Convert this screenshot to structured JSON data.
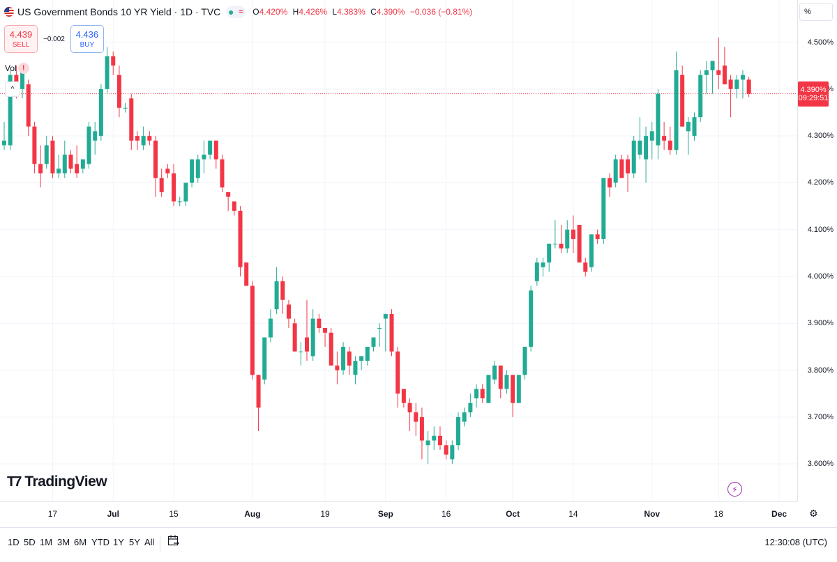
{
  "header": {
    "title": "US Government Bonds 10 YR Yield · 1D · TVC",
    "ohlc": {
      "open_label": "O",
      "open": "4.420%",
      "high_label": "H",
      "high": "4.426%",
      "low_label": "L",
      "low": "4.383%",
      "close_label": "C",
      "close": "4.390%",
      "change": "−0.036 (−0.81%)"
    },
    "status_icons": [
      "dot-icon",
      "wave-icon"
    ]
  },
  "trade": {
    "sell_price": "4.439",
    "sell_label": "SELL",
    "spread": "−0.002",
    "buy_price": "4.436",
    "buy_label": "BUY"
  },
  "volume_label": "Vol",
  "volume_warn": "!",
  "collapse_glyph": "^",
  "scale_mode": "%",
  "last_price": {
    "value": "4.390%",
    "countdown": "09:29:51"
  },
  "logo_text": "TradingView",
  "colors": {
    "up": "#22ab94",
    "down": "#f23645",
    "last": "#f23645",
    "grid": "#f0f3fa"
  },
  "ranges": [
    "1D",
    "5D",
    "1M",
    "3M",
    "6M",
    "YTD",
    "1Y",
    "5Y",
    "All"
  ],
  "clock": "12:30:08 (UTC)",
  "chart_data": {
    "type": "candlestick",
    "title": "US Government Bonds 10 YR Yield · 1D · TVC",
    "ylim": [
      3.52,
      4.59
    ],
    "y_ticks": [
      {
        "v": 3.6,
        "label": "3.600%"
      },
      {
        "v": 3.7,
        "label": "3.700%"
      },
      {
        "v": 3.8,
        "label": "3.800%"
      },
      {
        "v": 3.9,
        "label": "3.900%"
      },
      {
        "v": 4.0,
        "label": "4.000%"
      },
      {
        "v": 4.1,
        "label": "4.100%"
      },
      {
        "v": 4.2,
        "label": "4.200%"
      },
      {
        "v": 4.3,
        "label": "4.300%"
      },
      {
        "v": 4.4,
        "label": "4.400%"
      },
      {
        "v": 4.5,
        "label": "4.500%"
      }
    ],
    "x_ticks": [
      {
        "i": 8,
        "label": "17",
        "major": false
      },
      {
        "i": 18,
        "label": "Jul",
        "major": true
      },
      {
        "i": 28,
        "label": "15",
        "major": false
      },
      {
        "i": 41,
        "label": "Aug",
        "major": true
      },
      {
        "i": 53,
        "label": "19",
        "major": false
      },
      {
        "i": 63,
        "label": "Sep",
        "major": true
      },
      {
        "i": 73,
        "label": "16",
        "major": false
      },
      {
        "i": 84,
        "label": "Oct",
        "major": true
      },
      {
        "i": 94,
        "label": "14",
        "major": false
      },
      {
        "i": 107,
        "label": "Nov",
        "major": true
      },
      {
        "i": 118,
        "label": "18",
        "major": false
      },
      {
        "i": 128,
        "label": "Dec",
        "major": true
      }
    ],
    "candles": [
      {
        "o": 4.28,
        "h": 4.33,
        "l": 4.27,
        "c": 4.29
      },
      {
        "o": 4.28,
        "h": 4.44,
        "l": 4.27,
        "c": 4.43
      },
      {
        "o": 4.43,
        "h": 4.45,
        "l": 4.38,
        "c": 4.4
      },
      {
        "o": 4.4,
        "h": 4.45,
        "l": 4.38,
        "c": 4.44
      },
      {
        "o": 4.41,
        "h": 4.42,
        "l": 4.3,
        "c": 4.32
      },
      {
        "o": 4.32,
        "h": 4.33,
        "l": 4.22,
        "c": 4.24
      },
      {
        "o": 4.24,
        "h": 4.28,
        "l": 4.19,
        "c": 4.22
      },
      {
        "o": 4.24,
        "h": 4.3,
        "l": 4.23,
        "c": 4.28
      },
      {
        "o": 4.29,
        "h": 4.3,
        "l": 4.21,
        "c": 4.22
      },
      {
        "o": 4.22,
        "h": 4.26,
        "l": 4.21,
        "c": 4.23
      },
      {
        "o": 4.22,
        "h": 4.29,
        "l": 4.21,
        "c": 4.26
      },
      {
        "o": 4.26,
        "h": 4.27,
        "l": 4.22,
        "c": 4.23
      },
      {
        "o": 4.24,
        "h": 4.28,
        "l": 4.21,
        "c": 4.22
      },
      {
        "o": 4.23,
        "h": 4.25,
        "l": 4.22,
        "c": 4.25
      },
      {
        "o": 4.24,
        "h": 4.33,
        "l": 4.23,
        "c": 4.32
      },
      {
        "o": 4.29,
        "h": 4.33,
        "l": 4.26,
        "c": 4.31
      },
      {
        "o": 4.3,
        "h": 4.41,
        "l": 4.29,
        "c": 4.4
      },
      {
        "o": 4.4,
        "h": 4.49,
        "l": 4.39,
        "c": 4.47
      },
      {
        "o": 4.47,
        "h": 4.48,
        "l": 4.43,
        "c": 4.45
      },
      {
        "o": 4.43,
        "h": 4.45,
        "l": 4.34,
        "c": 4.36
      },
      {
        "o": 4.36,
        "h": 4.37,
        "l": 4.35,
        "c": 4.36
      },
      {
        "o": 4.38,
        "h": 4.39,
        "l": 4.27,
        "c": 4.29
      },
      {
        "o": 4.3,
        "h": 4.31,
        "l": 4.27,
        "c": 4.29
      },
      {
        "o": 4.28,
        "h": 4.32,
        "l": 4.27,
        "c": 4.3
      },
      {
        "o": 4.3,
        "h": 4.31,
        "l": 4.28,
        "c": 4.29
      },
      {
        "o": 4.29,
        "h": 4.3,
        "l": 4.17,
        "c": 4.21
      },
      {
        "o": 4.21,
        "h": 4.23,
        "l": 4.17,
        "c": 4.18
      },
      {
        "o": 4.23,
        "h": 4.24,
        "l": 4.21,
        "c": 4.22
      },
      {
        "o": 4.22,
        "h": 4.24,
        "l": 4.15,
        "c": 4.16
      },
      {
        "o": 4.16,
        "h": 4.17,
        "l": 4.15,
        "c": 4.16
      },
      {
        "o": 4.16,
        "h": 4.2,
        "l": 4.15,
        "c": 4.2
      },
      {
        "o": 4.2,
        "h": 4.25,
        "l": 4.19,
        "c": 4.25
      },
      {
        "o": 4.21,
        "h": 4.26,
        "l": 4.2,
        "c": 4.25
      },
      {
        "o": 4.25,
        "h": 4.29,
        "l": 4.22,
        "c": 4.26
      },
      {
        "o": 4.26,
        "h": 4.29,
        "l": 4.25,
        "c": 4.29
      },
      {
        "o": 4.29,
        "h": 4.29,
        "l": 4.23,
        "c": 4.25
      },
      {
        "o": 4.25,
        "h": 4.26,
        "l": 4.18,
        "c": 4.19
      },
      {
        "o": 4.18,
        "h": 4.18,
        "l": 4.14,
        "c": 4.17
      },
      {
        "o": 4.16,
        "h": 4.16,
        "l": 4.13,
        "c": 4.14
      },
      {
        "o": 4.14,
        "h": 4.15,
        "l": 4.0,
        "c": 4.02
      },
      {
        "o": 4.03,
        "h": 4.03,
        "l": 3.98,
        "c": 3.98
      },
      {
        "o": 3.98,
        "h": 3.99,
        "l": 3.78,
        "c": 3.79
      },
      {
        "o": 3.79,
        "h": 3.79,
        "l": 3.67,
        "c": 3.72
      },
      {
        "o": 3.78,
        "h": 3.87,
        "l": 3.77,
        "c": 3.87
      },
      {
        "o": 3.87,
        "h": 3.93,
        "l": 3.86,
        "c": 3.91
      },
      {
        "o": 3.93,
        "h": 4.02,
        "l": 3.92,
        "c": 3.99
      },
      {
        "o": 3.99,
        "h": 4.0,
        "l": 3.92,
        "c": 3.95
      },
      {
        "o": 3.94,
        "h": 3.95,
        "l": 3.89,
        "c": 3.91
      },
      {
        "o": 3.9,
        "h": 3.91,
        "l": 3.84,
        "c": 3.84
      },
      {
        "o": 3.84,
        "h": 3.86,
        "l": 3.81,
        "c": 3.84
      },
      {
        "o": 3.87,
        "h": 3.95,
        "l": 3.82,
        "c": 3.84
      },
      {
        "o": 3.83,
        "h": 3.93,
        "l": 3.82,
        "c": 3.91
      },
      {
        "o": 3.91,
        "h": 3.92,
        "l": 3.88,
        "c": 3.89
      },
      {
        "o": 3.89,
        "h": 3.89,
        "l": 3.85,
        "c": 3.88
      },
      {
        "o": 3.88,
        "h": 3.89,
        "l": 3.81,
        "c": 3.81
      },
      {
        "o": 3.81,
        "h": 3.84,
        "l": 3.77,
        "c": 3.8
      },
      {
        "o": 3.8,
        "h": 3.86,
        "l": 3.79,
        "c": 3.85
      },
      {
        "o": 3.84,
        "h": 3.85,
        "l": 3.79,
        "c": 3.81
      },
      {
        "o": 3.79,
        "h": 3.83,
        "l": 3.77,
        "c": 3.82
      },
      {
        "o": 3.82,
        "h": 3.83,
        "l": 3.8,
        "c": 3.83
      },
      {
        "o": 3.82,
        "h": 3.85,
        "l": 3.81,
        "c": 3.85
      },
      {
        "o": 3.85,
        "h": 3.87,
        "l": 3.84,
        "c": 3.87
      },
      {
        "o": 3.89,
        "h": 3.9,
        "l": 3.85,
        "c": 3.89
      },
      {
        "o": 3.91,
        "h": 3.92,
        "l": 3.84,
        "c": 3.92
      },
      {
        "o": 3.92,
        "h": 3.93,
        "l": 3.83,
        "c": 3.84
      },
      {
        "o": 3.84,
        "h": 3.85,
        "l": 3.72,
        "c": 3.75
      },
      {
        "o": 3.76,
        "h": 3.76,
        "l": 3.72,
        "c": 3.73
      },
      {
        "o": 3.73,
        "h": 3.74,
        "l": 3.67,
        "c": 3.71
      },
      {
        "o": 3.71,
        "h": 3.73,
        "l": 3.66,
        "c": 3.69
      },
      {
        "o": 3.7,
        "h": 3.72,
        "l": 3.61,
        "c": 3.65
      },
      {
        "o": 3.64,
        "h": 3.67,
        "l": 3.6,
        "c": 3.65
      },
      {
        "o": 3.65,
        "h": 3.68,
        "l": 3.63,
        "c": 3.66
      },
      {
        "o": 3.66,
        "h": 3.68,
        "l": 3.63,
        "c": 3.64
      },
      {
        "o": 3.64,
        "h": 3.65,
        "l": 3.61,
        "c": 3.62
      },
      {
        "o": 3.61,
        "h": 3.65,
        "l": 3.6,
        "c": 3.64
      },
      {
        "o": 3.64,
        "h": 3.71,
        "l": 3.63,
        "c": 3.7
      },
      {
        "o": 3.69,
        "h": 3.72,
        "l": 3.68,
        "c": 3.71
      },
      {
        "o": 3.71,
        "h": 3.75,
        "l": 3.7,
        "c": 3.73
      },
      {
        "o": 3.74,
        "h": 3.77,
        "l": 3.72,
        "c": 3.76
      },
      {
        "o": 3.76,
        "h": 3.77,
        "l": 3.73,
        "c": 3.74
      },
      {
        "o": 3.73,
        "h": 3.79,
        "l": 3.73,
        "c": 3.79
      },
      {
        "o": 3.78,
        "h": 3.82,
        "l": 3.77,
        "c": 3.81
      },
      {
        "o": 3.81,
        "h": 3.81,
        "l": 3.74,
        "c": 3.76
      },
      {
        "o": 3.76,
        "h": 3.8,
        "l": 3.75,
        "c": 3.79
      },
      {
        "o": 3.79,
        "h": 3.79,
        "l": 3.7,
        "c": 3.73
      },
      {
        "o": 3.73,
        "h": 3.79,
        "l": 3.73,
        "c": 3.79
      },
      {
        "o": 3.79,
        "h": 3.85,
        "l": 3.78,
        "c": 3.85
      },
      {
        "o": 3.85,
        "h": 3.98,
        "l": 3.84,
        "c": 3.97
      },
      {
        "o": 3.99,
        "h": 4.04,
        "l": 3.98,
        "c": 4.03
      },
      {
        "o": 4.02,
        "h": 4.04,
        "l": 4.0,
        "c": 4.03
      },
      {
        "o": 4.03,
        "h": 4.07,
        "l": 4.01,
        "c": 4.07
      },
      {
        "o": 4.07,
        "h": 4.12,
        "l": 4.06,
        "c": 4.07
      },
      {
        "o": 4.07,
        "h": 4.11,
        "l": 4.05,
        "c": 4.06
      },
      {
        "o": 4.06,
        "h": 4.12,
        "l": 4.05,
        "c": 4.1
      },
      {
        "o": 4.1,
        "h": 4.13,
        "l": 4.05,
        "c": 4.08
      },
      {
        "o": 4.11,
        "h": 4.11,
        "l": 4.03,
        "c": 4.03
      },
      {
        "o": 4.03,
        "h": 4.04,
        "l": 4.0,
        "c": 4.01
      },
      {
        "o": 4.02,
        "h": 4.09,
        "l": 4.01,
        "c": 4.09
      },
      {
        "o": 4.09,
        "h": 4.1,
        "l": 4.07,
        "c": 4.08
      },
      {
        "o": 4.08,
        "h": 4.21,
        "l": 4.07,
        "c": 4.21
      },
      {
        "o": 4.21,
        "h": 4.22,
        "l": 4.17,
        "c": 4.19
      },
      {
        "o": 4.2,
        "h": 4.26,
        "l": 4.19,
        "c": 4.25
      },
      {
        "o": 4.25,
        "h": 4.26,
        "l": 4.21,
        "c": 4.21
      },
      {
        "o": 4.25,
        "h": 4.26,
        "l": 4.18,
        "c": 4.22
      },
      {
        "o": 4.22,
        "h": 4.3,
        "l": 4.21,
        "c": 4.29
      },
      {
        "o": 4.26,
        "h": 4.34,
        "l": 4.25,
        "c": 4.29
      },
      {
        "o": 4.25,
        "h": 4.32,
        "l": 4.2,
        "c": 4.3
      },
      {
        "o": 4.29,
        "h": 4.33,
        "l": 4.25,
        "c": 4.31
      },
      {
        "o": 4.28,
        "h": 4.4,
        "l": 4.25,
        "c": 4.39
      },
      {
        "o": 4.3,
        "h": 4.33,
        "l": 4.27,
        "c": 4.29
      },
      {
        "o": 4.29,
        "h": 4.32,
        "l": 4.26,
        "c": 4.27
      },
      {
        "o": 4.27,
        "h": 4.48,
        "l": 4.26,
        "c": 4.44
      },
      {
        "o": 4.43,
        "h": 4.45,
        "l": 4.32,
        "c": 4.32
      },
      {
        "o": 4.31,
        "h": 4.34,
        "l": 4.26,
        "c": 4.33
      },
      {
        "o": 4.3,
        "h": 4.35,
        "l": 4.29,
        "c": 4.34
      },
      {
        "o": 4.34,
        "h": 4.44,
        "l": 4.33,
        "c": 4.43
      },
      {
        "o": 4.43,
        "h": 4.46,
        "l": 4.39,
        "c": 4.44
      },
      {
        "o": 4.44,
        "h": 4.46,
        "l": 4.39,
        "c": 4.46
      },
      {
        "o": 4.44,
        "h": 4.51,
        "l": 4.4,
        "c": 4.43
      },
      {
        "o": 4.45,
        "h": 4.49,
        "l": 4.41,
        "c": 4.41
      },
      {
        "o": 4.42,
        "h": 4.43,
        "l": 4.34,
        "c": 4.4
      },
      {
        "o": 4.4,
        "h": 4.43,
        "l": 4.38,
        "c": 4.42
      },
      {
        "o": 4.42,
        "h": 4.44,
        "l": 4.38,
        "c": 4.43
      },
      {
        "o": 4.42,
        "h": 4.426,
        "l": 4.383,
        "c": 4.39
      }
    ],
    "last_value": 4.39
  }
}
